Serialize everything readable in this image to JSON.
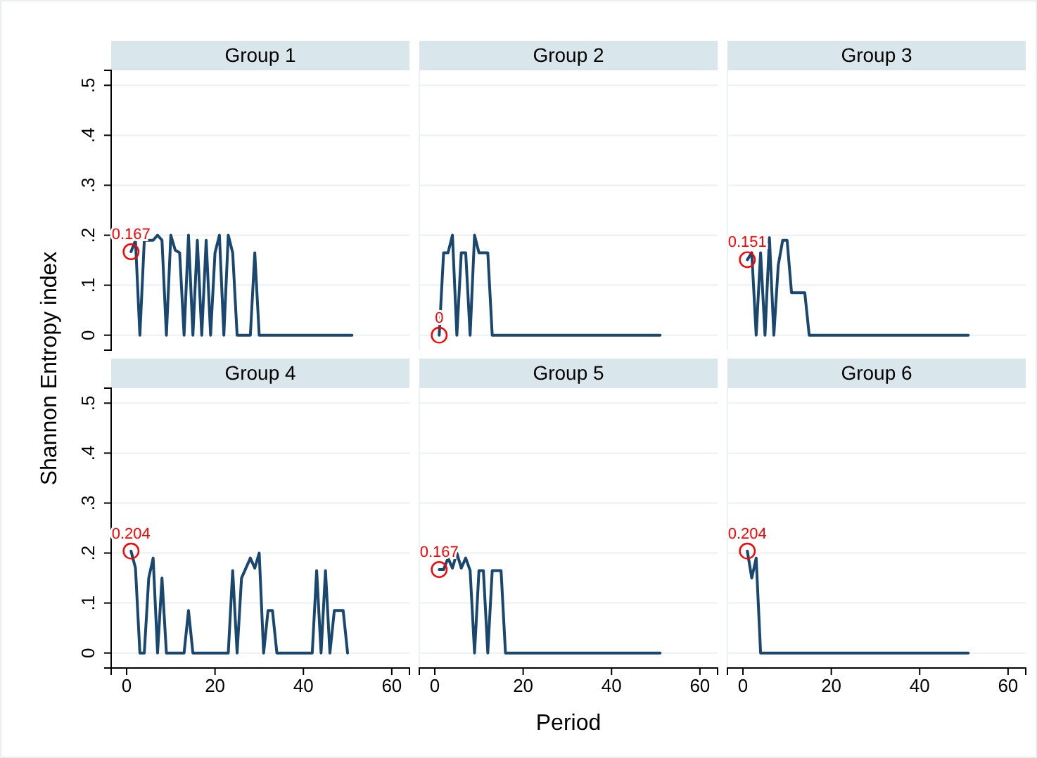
{
  "chart_data": [
    {
      "type": "line",
      "title": "Group 1",
      "ylabel": "Shannon Entropy index",
      "xlim": [
        -3.5,
        64
      ],
      "ylim": [
        -0.03,
        0.53
      ],
      "xticks": [
        0,
        20,
        40,
        60
      ],
      "yticks": [
        0,
        {
          "value": 0.1,
          "label": ".1"
        },
        {
          "value": 0.2,
          "label": ".2"
        },
        {
          "value": 0.3,
          "label": ".3"
        },
        {
          "value": 0.4,
          "label": ".4"
        },
        {
          "value": 0.5,
          "label": ".5"
        }
      ],
      "grid": "y",
      "tick_labels": "y",
      "series": [
        {
          "type": "line",
          "color": "#1a476f",
          "x": [
            1,
            2,
            3,
            4,
            5,
            6,
            7,
            8,
            9,
            10,
            11,
            12,
            13,
            14,
            15,
            16,
            17,
            18,
            19,
            20,
            21,
            22,
            23,
            24,
            25,
            26,
            27,
            28,
            29,
            30,
            31,
            32,
            33,
            34,
            35,
            36,
            37,
            38,
            39,
            40,
            41,
            42,
            43,
            44,
            45,
            46,
            47,
            48,
            49,
            50,
            51
          ],
          "values": [
            0.167,
            0.19,
            0,
            0.19,
            0.19,
            0.19,
            0.2,
            0.19,
            0,
            0.2,
            0.17,
            0.165,
            0,
            0.2,
            0,
            0.19,
            0,
            0.19,
            0,
            0.165,
            0.2,
            0,
            0.2,
            0.165,
            0,
            0,
            0,
            0,
            0.165,
            0,
            0,
            0,
            0,
            0,
            0,
            0,
            0,
            0,
            0,
            0,
            0,
            0,
            0,
            0,
            0,
            0,
            0,
            0,
            0,
            0,
            0
          ]
        },
        {
          "type": "scatter",
          "color": "#ff0000",
          "marker": "circle",
          "x": [
            1
          ],
          "values": [
            0.167
          ],
          "value_labels": [
            "0.167"
          ]
        }
      ]
    },
    {
      "type": "line",
      "title": "Group 2",
      "xlim": [
        -3.5,
        64
      ],
      "ylim": [
        -0.03,
        0.53
      ],
      "yticks": [
        {
          "value": 0,
          "label": null
        },
        {
          "value": 0.1,
          "label": null
        },
        {
          "value": 0.2,
          "label": null
        },
        {
          "value": 0.3,
          "label": null
        },
        {
          "value": 0.4,
          "label": null
        },
        {
          "value": 0.5,
          "label": null
        }
      ],
      "grid": "y",
      "tick_labels": false,
      "series": [
        {
          "type": "line",
          "color": "#1a476f",
          "x": [
            1,
            2,
            3,
            4,
            5,
            6,
            7,
            8,
            9,
            10,
            11,
            12,
            13,
            14,
            15,
            16,
            17,
            18,
            19,
            20,
            21,
            22,
            23,
            24,
            25,
            26,
            27,
            28,
            29,
            30,
            31,
            32,
            33,
            34,
            35,
            36,
            37,
            38,
            39,
            40,
            41,
            42,
            43,
            44,
            45,
            46,
            47,
            48,
            49,
            50,
            51
          ],
          "values": [
            0,
            0.165,
            0.165,
            0.2,
            0,
            0.165,
            0.165,
            0,
            0.2,
            0.165,
            0.165,
            0.165,
            0,
            0,
            0,
            0,
            0,
            0,
            0,
            0,
            0,
            0,
            0,
            0,
            0,
            0,
            0,
            0,
            0,
            0,
            0,
            0,
            0,
            0,
            0,
            0,
            0,
            0,
            0,
            0,
            0,
            0,
            0,
            0,
            0,
            0,
            0,
            0,
            0,
            0,
            0
          ]
        },
        {
          "type": "scatter",
          "color": "#ff0000",
          "marker": "circle",
          "x": [
            1
          ],
          "values": [
            0
          ],
          "value_labels": [
            "0"
          ]
        }
      ]
    },
    {
      "type": "line",
      "title": "Group 3",
      "xlim": [
        -3.5,
        64
      ],
      "ylim": [
        -0.03,
        0.53
      ],
      "yticks": [
        {
          "value": 0,
          "label": null
        },
        {
          "value": 0.1,
          "label": null
        },
        {
          "value": 0.2,
          "label": null
        },
        {
          "value": 0.3,
          "label": null
        },
        {
          "value": 0.4,
          "label": null
        },
        {
          "value": 0.5,
          "label": null
        }
      ],
      "grid": "y",
      "tick_labels": false,
      "series": [
        {
          "type": "line",
          "color": "#1a476f",
          "x": [
            1,
            2,
            3,
            4,
            5,
            6,
            7,
            8,
            9,
            10,
            11,
            12,
            13,
            14,
            15,
            16,
            17,
            18,
            19,
            20,
            21,
            22,
            23,
            24,
            25,
            26,
            27,
            28,
            29,
            30,
            31,
            32,
            33,
            34,
            35,
            36,
            37,
            38,
            39,
            40,
            41,
            42,
            43,
            44,
            45,
            46,
            47,
            48,
            49,
            50,
            51
          ],
          "values": [
            0.151,
            0.165,
            0,
            0.165,
            0,
            0.195,
            0,
            0.14,
            0.19,
            0.19,
            0.085,
            0.085,
            0.085,
            0.085,
            0,
            0,
            0,
            0,
            0,
            0,
            0,
            0,
            0,
            0,
            0,
            0,
            0,
            0,
            0,
            0,
            0,
            0,
            0,
            0,
            0,
            0,
            0,
            0,
            0,
            0,
            0,
            0,
            0,
            0,
            0,
            0,
            0,
            0,
            0,
            0,
            0
          ]
        },
        {
          "type": "scatter",
          "color": "#ff0000",
          "marker": "circle",
          "x": [
            1
          ],
          "values": [
            0.151
          ],
          "value_labels": [
            "0.151"
          ]
        }
      ]
    },
    {
      "type": "line",
      "title": "Group 4",
      "xlim": [
        -3.5,
        64
      ],
      "ylim": [
        -0.03,
        0.53
      ],
      "xticks": [
        0,
        20,
        40,
        60
      ],
      "yticks": [
        0,
        {
          "value": 0.1,
          "label": ".1"
        },
        {
          "value": 0.2,
          "label": ".2"
        },
        {
          "value": 0.3,
          "label": ".3"
        },
        {
          "value": 0.4,
          "label": ".4"
        },
        {
          "value": 0.5,
          "label": ".5"
        }
      ],
      "grid": "y",
      "series": [
        {
          "type": "line",
          "color": "#1a476f",
          "x": [
            1,
            2,
            3,
            4,
            5,
            6,
            7,
            8,
            9,
            10,
            11,
            12,
            13,
            14,
            15,
            16,
            17,
            18,
            19,
            20,
            21,
            22,
            23,
            24,
            25,
            26,
            27,
            28,
            29,
            30,
            31,
            32,
            33,
            34,
            35,
            36,
            37,
            38,
            39,
            40,
            41,
            42,
            43,
            44,
            45,
            46,
            47,
            48,
            49,
            50
          ],
          "values": [
            0.204,
            0.17,
            0,
            0,
            0.15,
            0.19,
            0,
            0.15,
            0,
            0,
            0,
            0,
            0,
            0.085,
            0,
            0,
            0,
            0,
            0,
            0,
            0,
            0,
            0,
            0.165,
            0,
            0.15,
            0.17,
            0.19,
            0.17,
            0.2,
            0,
            0.085,
            0.085,
            0,
            0,
            0,
            0,
            0,
            0,
            0,
            0,
            0,
            0.165,
            0,
            0.165,
            0,
            0.085,
            0.085,
            0.085,
            0
          ]
        },
        {
          "type": "scatter",
          "color": "#ff0000",
          "marker": "circle",
          "x": [
            1
          ],
          "values": [
            0.204
          ],
          "value_labels": [
            "0.204"
          ]
        }
      ]
    },
    {
      "type": "line",
      "title": "Group 5",
      "xlabel": "Period",
      "xlim": [
        -3.5,
        64
      ],
      "ylim": [
        -0.03,
        0.53
      ],
      "xticks": [
        0,
        20,
        40,
        60
      ],
      "yticks": [
        {
          "value": 0,
          "label": null
        },
        {
          "value": 0.1,
          "label": null
        },
        {
          "value": 0.2,
          "label": null
        },
        {
          "value": 0.3,
          "label": null
        },
        {
          "value": 0.4,
          "label": null
        },
        {
          "value": 0.5,
          "label": null
        }
      ],
      "grid": "y",
      "tick_labels": "x",
      "series": [
        {
          "type": "line",
          "color": "#1a476f",
          "x": [
            1,
            2,
            3,
            4,
            5,
            6,
            7,
            8,
            9,
            10,
            11,
            12,
            13,
            14,
            15,
            16,
            17,
            18,
            19,
            20,
            21,
            22,
            23,
            24,
            25,
            26,
            27,
            28,
            29,
            30,
            31,
            32,
            33,
            34,
            35,
            36,
            37,
            38,
            39,
            40,
            41,
            42,
            43,
            44,
            45,
            46,
            47,
            48,
            49,
            50,
            51
          ],
          "values": [
            0.167,
            0.167,
            0.19,
            0.17,
            0.2,
            0.17,
            0.19,
            0.165,
            0,
            0.165,
            0.165,
            0,
            0.165,
            0.165,
            0.165,
            0,
            0,
            0,
            0,
            0,
            0,
            0,
            0,
            0,
            0,
            0,
            0,
            0,
            0,
            0,
            0,
            0,
            0,
            0,
            0,
            0,
            0,
            0,
            0,
            0,
            0,
            0,
            0,
            0,
            0,
            0,
            0,
            0,
            0,
            0,
            0
          ]
        },
        {
          "type": "scatter",
          "color": "#ff0000",
          "marker": "circle",
          "x": [
            1
          ],
          "values": [
            0.167
          ],
          "value_labels": [
            "0.167"
          ]
        }
      ]
    },
    {
      "type": "line",
      "title": "Group 6",
      "xlim": [
        -3.5,
        64
      ],
      "ylim": [
        -0.03,
        0.53
      ],
      "xticks": [
        0,
        20,
        40,
        60
      ],
      "yticks": [
        {
          "value": 0,
          "label": null
        },
        {
          "value": 0.1,
          "label": null
        },
        {
          "value": 0.2,
          "label": null
        },
        {
          "value": 0.3,
          "label": null
        },
        {
          "value": 0.4,
          "label": null
        },
        {
          "value": 0.5,
          "label": null
        }
      ],
      "grid": "y",
      "tick_labels": "x",
      "series": [
        {
          "type": "line",
          "color": "#1a476f",
          "x": [
            1,
            2,
            3,
            4,
            5,
            6,
            7,
            8,
            9,
            10,
            11,
            12,
            13,
            14,
            15,
            16,
            17,
            18,
            19,
            20,
            21,
            22,
            23,
            24,
            25,
            26,
            27,
            28,
            29,
            30,
            31,
            32,
            33,
            34,
            35,
            36,
            37,
            38,
            39,
            40,
            41,
            42,
            43,
            44,
            45,
            46,
            47,
            48,
            49,
            50,
            51
          ],
          "values": [
            0.204,
            0.15,
            0.19,
            0,
            0,
            0,
            0,
            0,
            0,
            0,
            0,
            0,
            0,
            0,
            0,
            0,
            0,
            0,
            0,
            0,
            0,
            0,
            0,
            0,
            0,
            0,
            0,
            0,
            0,
            0,
            0,
            0,
            0,
            0,
            0,
            0,
            0,
            0,
            0,
            0,
            0,
            0,
            0,
            0,
            0,
            0,
            0,
            0,
            0,
            0,
            0
          ]
        },
        {
          "type": "scatter",
          "color": "#ff0000",
          "marker": "circle",
          "x": [
            1
          ],
          "values": [
            0.204
          ],
          "value_labels": [
            "0.204"
          ]
        }
      ]
    }
  ]
}
